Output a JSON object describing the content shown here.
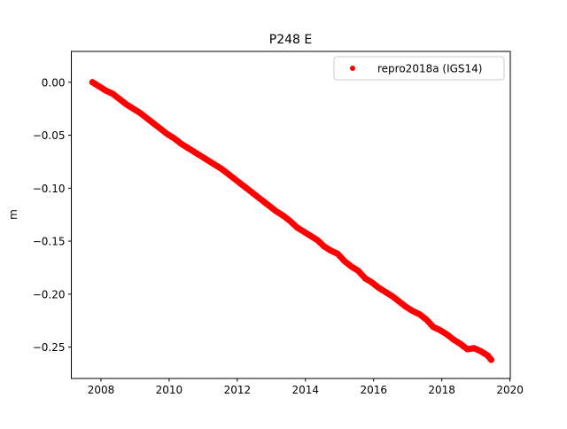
{
  "chart_data": {
    "type": "scatter",
    "title": "P248 E",
    "xlabel": "",
    "ylabel": "m",
    "xlim": [
      2007.13,
      2020.01
    ],
    "ylim": [
      -0.2796,
      0.0291
    ],
    "xticks": [
      2008,
      2010,
      2012,
      2014,
      2016,
      2018,
      2020
    ],
    "xtick_labels": [
      "2008",
      "2010",
      "2012",
      "2014",
      "2016",
      "2018",
      "2020"
    ],
    "yticks": [
      0.0,
      -0.05,
      -0.1,
      -0.15,
      -0.2,
      -0.25
    ],
    "ytick_labels": [
      "0.00",
      "−0.05",
      "−0.10",
      "−0.15",
      "−0.20",
      "−0.25"
    ],
    "grid": false,
    "legend_position": "top-right",
    "series": [
      {
        "name": "repro2018a (IGS14)",
        "color": "#ff0000",
        "marker": "dot",
        "x": [
          2007.75,
          2007.95,
          2008.15,
          2008.35,
          2008.55,
          2008.75,
          2008.95,
          2009.15,
          2009.35,
          2009.55,
          2009.75,
          2009.95,
          2010.15,
          2010.35,
          2010.55,
          2010.75,
          2010.95,
          2011.15,
          2011.35,
          2011.55,
          2011.75,
          2011.95,
          2012.15,
          2012.35,
          2012.55,
          2012.75,
          2012.95,
          2013.15,
          2013.35,
          2013.55,
          2013.75,
          2013.95,
          2014.15,
          2014.35,
          2014.55,
          2014.75,
          2014.95,
          2015.15,
          2015.35,
          2015.55,
          2015.75,
          2015.95,
          2016.15,
          2016.35,
          2016.55,
          2016.75,
          2016.95,
          2017.15,
          2017.35,
          2017.55,
          2017.75,
          2017.95,
          2018.15,
          2018.35,
          2018.55,
          2018.75,
          2018.95,
          2019.15,
          2019.35,
          2019.45
        ],
        "y": [
          0.0,
          -0.004,
          -0.008,
          -0.011,
          -0.016,
          -0.021,
          -0.025,
          -0.029,
          -0.034,
          -0.039,
          -0.044,
          -0.049,
          -0.053,
          -0.058,
          -0.062,
          -0.066,
          -0.07,
          -0.074,
          -0.078,
          -0.082,
          -0.087,
          -0.092,
          -0.097,
          -0.102,
          -0.107,
          -0.112,
          -0.117,
          -0.122,
          -0.126,
          -0.131,
          -0.137,
          -0.141,
          -0.145,
          -0.149,
          -0.155,
          -0.159,
          -0.162,
          -0.169,
          -0.174,
          -0.178,
          -0.185,
          -0.189,
          -0.194,
          -0.198,
          -0.202,
          -0.207,
          -0.212,
          -0.216,
          -0.219,
          -0.224,
          -0.231,
          -0.234,
          -0.238,
          -0.243,
          -0.247,
          -0.252,
          -0.251,
          -0.254,
          -0.258,
          -0.262
        ]
      }
    ]
  }
}
